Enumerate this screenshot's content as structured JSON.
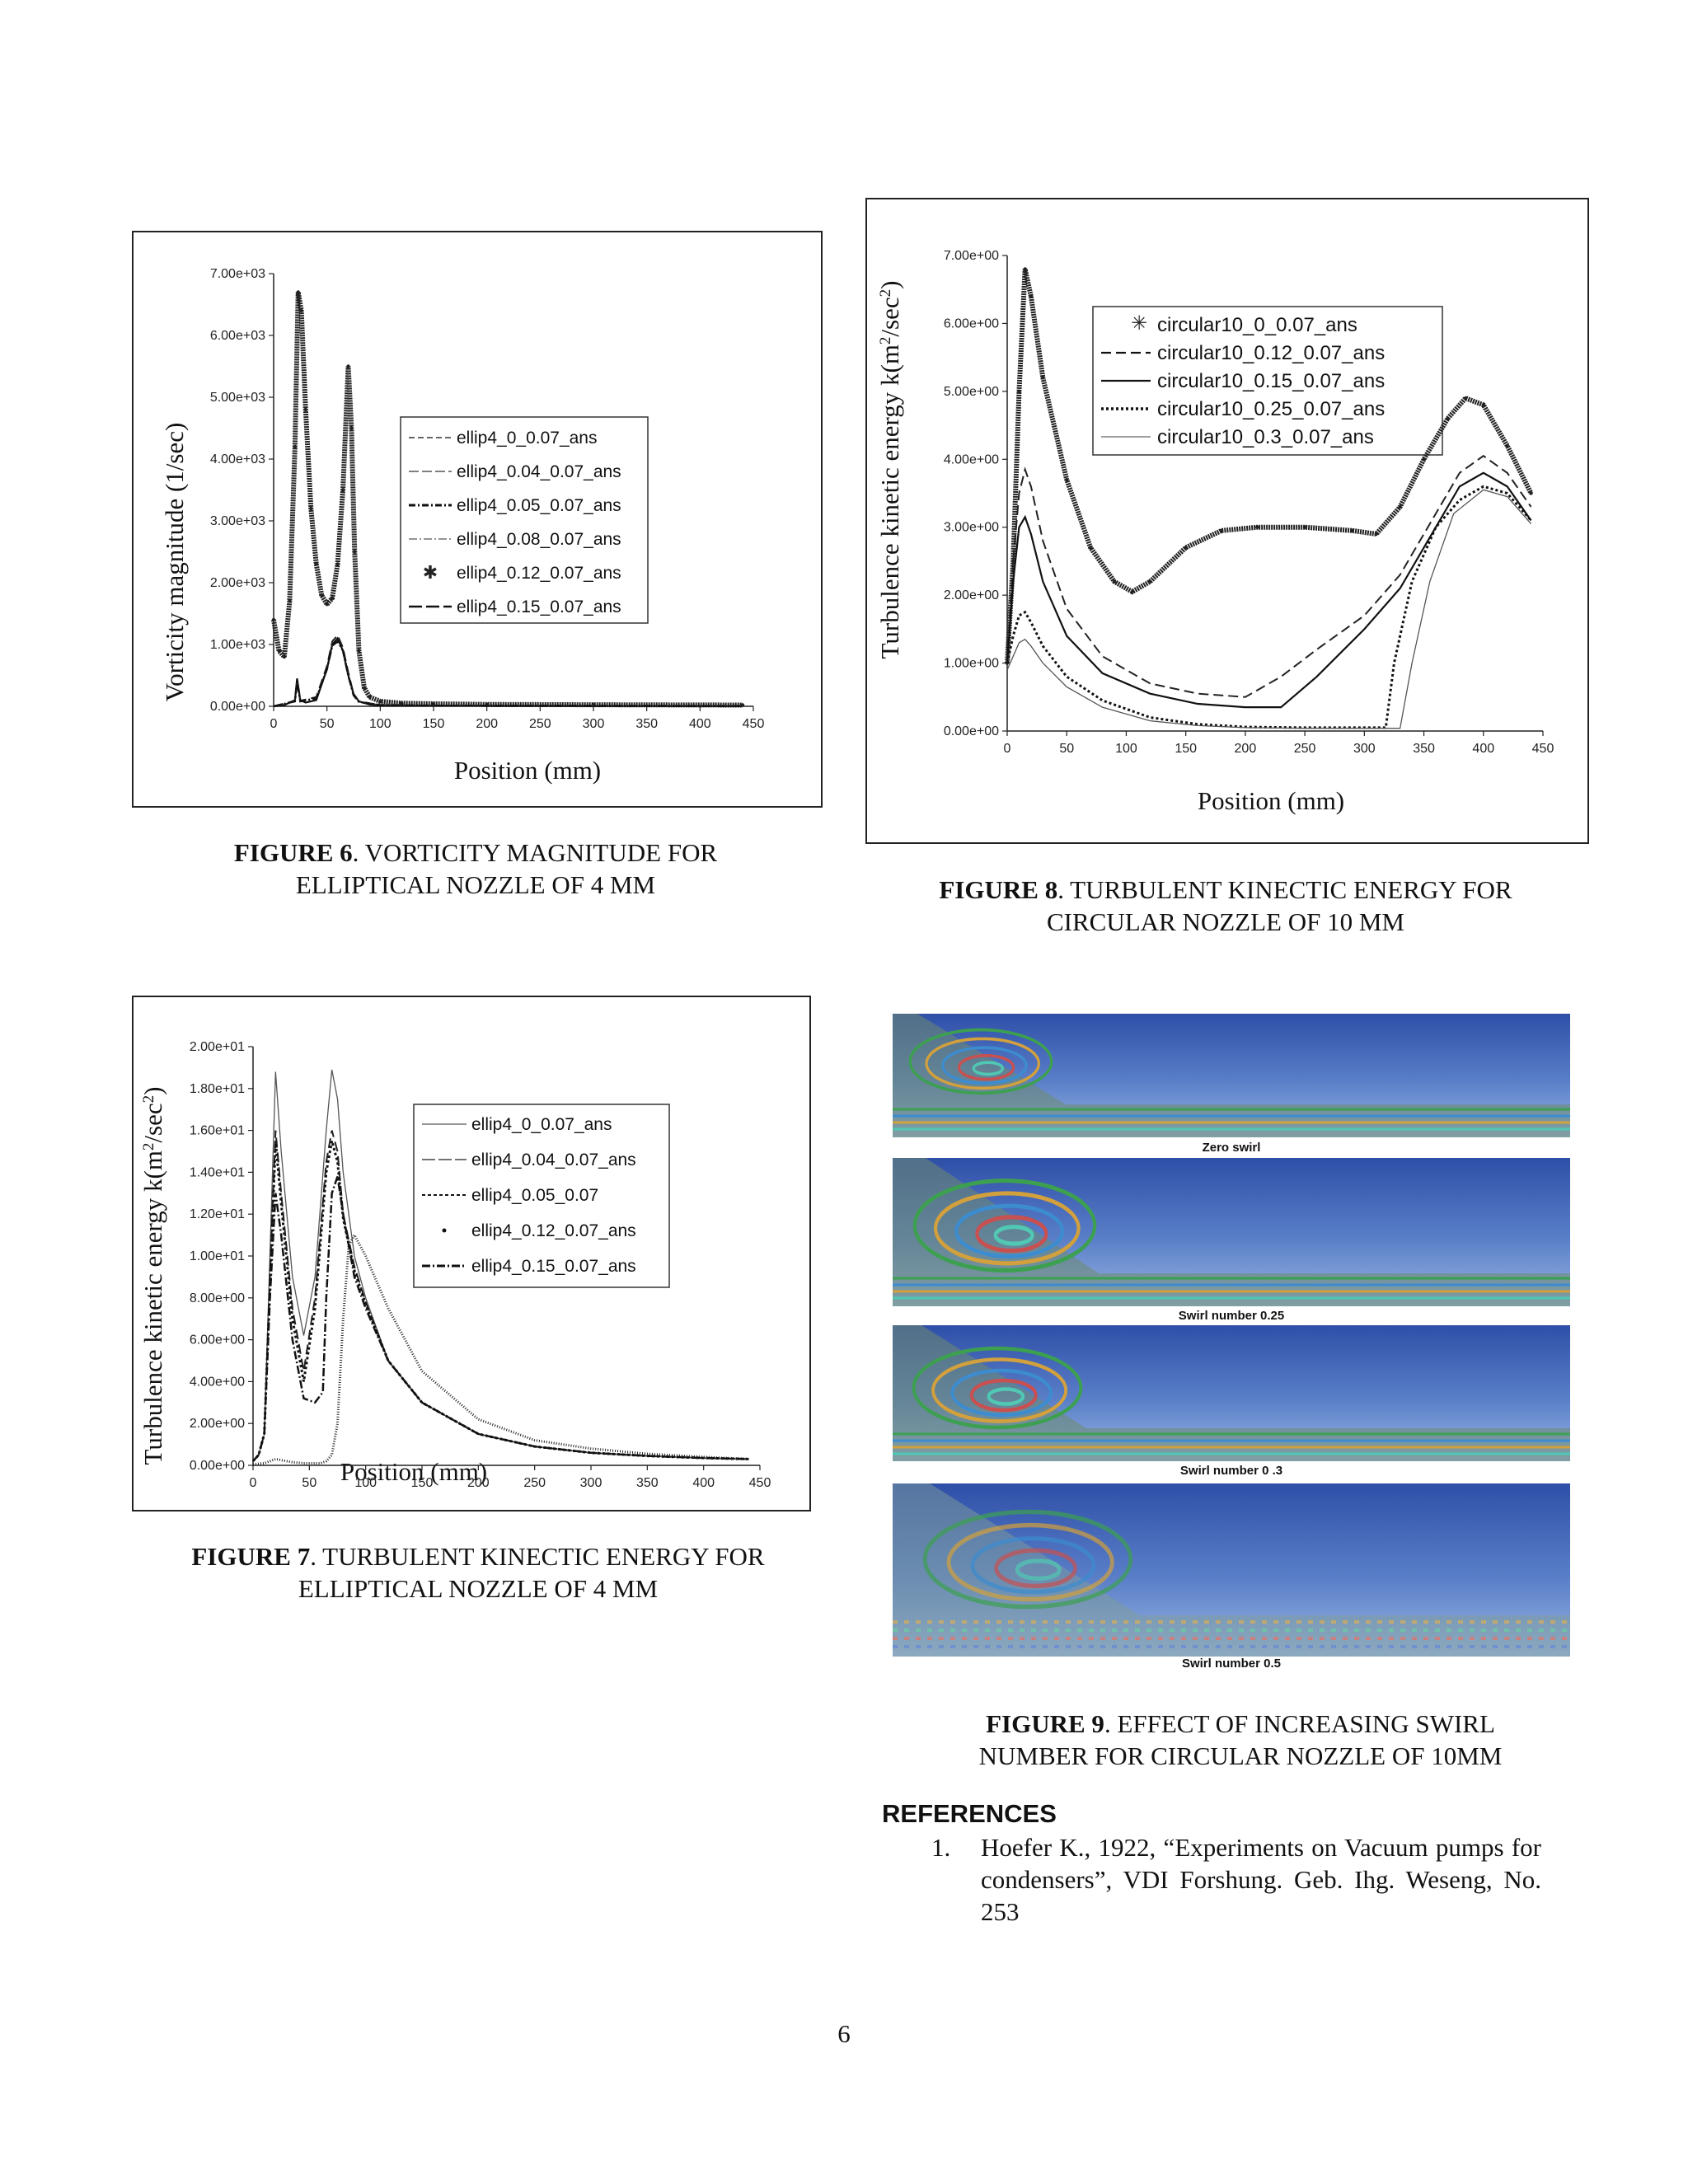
{
  "figure6": {
    "caption_label": "FIGURE 6",
    "caption_line1": ". VORTICITY MAGNITUDE FOR",
    "caption_line2": "ELLIPTICAL NOZZLE OF 4 MM",
    "ylabel": "Vorticity magnitude (1/sec)",
    "xlabel": "Position (mm)",
    "legend": [
      "ellip4_0_0.07_ans",
      "ellip4_0.04_0.07_ans",
      "ellip4_0.05_0.07_ans",
      "ellip4_0.08_0.07_ans",
      "ellip4_0.12_0.07_ans",
      "ellip4_0.15_0.07_ans"
    ],
    "y_ticks": [
      "0.00e+00",
      "1.00e+03",
      "2.00e+03",
      "3.00e+03",
      "4.00e+03",
      "5.00e+03",
      "6.00e+03",
      "7.00e+03"
    ],
    "x_ticks": [
      "0",
      "50",
      "100",
      "150",
      "200",
      "250",
      "300",
      "350",
      "400",
      "450"
    ]
  },
  "figure8": {
    "caption_label": "FIGURE 8",
    "caption_line1": ". TURBULENT KINECTIC ENERGY FOR",
    "caption_line2": "CIRCULAR NOZZLE OF 10 MM",
    "ylabel": "Turbulence kinetic energy k(m",
    "ylabel_sup": "2",
    "ylabel_mid": "/sec",
    "ylabel_sup2": "2",
    "ylabel_end": ")",
    "xlabel": "Position (mm)",
    "legend": [
      "circular10_0_0.07_ans",
      "circular10_0.12_0.07_ans",
      "circular10_0.15_0.07_ans",
      "circular10_0.25_0.07_ans",
      "circular10_0.3_0.07_ans"
    ],
    "y_ticks": [
      "0.00e+00",
      "1.00e+00",
      "2.00e+00",
      "3.00e+00",
      "4.00e+00",
      "5.00e+00",
      "6.00e+00",
      "7.00e+00"
    ],
    "x_ticks": [
      "0",
      "50",
      "100",
      "150",
      "200",
      "250",
      "300",
      "350",
      "400",
      "450"
    ]
  },
  "figure7": {
    "caption_label": "FIGURE 7",
    "caption_line1": ". TURBULENT KINECTIC ENERGY FOR",
    "caption_line2": "ELLIPTICAL NOZZLE OF 4 MM",
    "ylabel": "Turbulence kinetic energy k(m",
    "ylabel_sup": "2",
    "ylabel_mid": "/sec",
    "ylabel_sup2": "2",
    "ylabel_end": ")",
    "xlabel": "Position (mm)",
    "legend": [
      "ellip4_0_0.07_ans",
      "ellip4_0.04_0.07_ans",
      "ellip4_0.05_0.07",
      "ellip4_0.12_0.07_ans",
      "ellip4_0.15_0.07_ans"
    ],
    "y_ticks": [
      "0.00e+00",
      "2.00e+00",
      "4.00e+00",
      "6.00e+00",
      "8.00e+00",
      "1.00e+01",
      "1.20e+01",
      "1.40e+01",
      "1.60e+01",
      "1.80e+01",
      "2.00e+01"
    ],
    "x_ticks": [
      "0",
      "50",
      "100",
      "150",
      "200",
      "250",
      "300",
      "350",
      "400",
      "450"
    ]
  },
  "figure9": {
    "caption_label": "FIGURE 9",
    "caption_line1": ". EFFECT OF INCREASING SWIRL",
    "caption_line2": "NUMBER FOR CIRCULAR NOZZLE OF 10MM",
    "panels": [
      "Zero swirl",
      "Swirl number 0.25",
      "Swirl number 0 .3",
      "Swirl number 0.5"
    ]
  },
  "references": {
    "heading": "REFERENCES",
    "items": [
      {
        "number": "1.",
        "text": "Hoefer K., 1922, “Experiments on Vacuum pumps for condensers”, VDI Forshung. Geb. Ihg. Weseng, No. 253"
      }
    ]
  },
  "page_number": "6",
  "chart_data": [
    {
      "type": "line",
      "title": "Vorticity magnitude for elliptical nozzle of 4 mm",
      "xlabel": "Position (mm)",
      "ylabel": "Vorticity magnitude (1/sec)",
      "xlim": [
        0,
        450
      ],
      "ylim": [
        0,
        7000
      ],
      "series": [
        {
          "name": "ellip4_0.12_0.07_ans",
          "style": "star",
          "x": [
            0,
            5,
            10,
            15,
            20,
            23,
            26,
            30,
            35,
            40,
            45,
            50,
            55,
            60,
            65,
            70,
            73,
            76,
            80,
            85,
            90,
            100,
            120,
            150,
            200,
            300,
            440
          ],
          "y": [
            1400,
            900,
            800,
            1700,
            4200,
            6700,
            6400,
            4800,
            3200,
            2300,
            1800,
            1650,
            1750,
            2300,
            3500,
            5500,
            4500,
            2500,
            900,
            300,
            150,
            80,
            50,
            40,
            30,
            25,
            20
          ]
        },
        {
          "name": "ellip4_0.15_0.07_ans",
          "style": "solid",
          "x": [
            0,
            10,
            20,
            22,
            25,
            30,
            40,
            50,
            55,
            60,
            65,
            70,
            75,
            80,
            90,
            100,
            150,
            300,
            440
          ],
          "y": [
            0,
            20,
            100,
            450,
            100,
            60,
            100,
            600,
            1000,
            1100,
            900,
            500,
            200,
            80,
            30,
            15,
            10,
            5,
            5
          ]
        },
        {
          "name": "ellip4_0_0.07_ans",
          "style": "dashed",
          "x": [
            0,
            20,
            22,
            25,
            40,
            50,
            55,
            60,
            65,
            70,
            75,
            80,
            100,
            150,
            440
          ],
          "y": [
            0,
            90,
            420,
            90,
            150,
            650,
            1050,
            1150,
            950,
            550,
            200,
            80,
            20,
            10,
            5
          ]
        },
        {
          "name": "ellip4_0.05_0.07_ans",
          "style": "dashdot",
          "x": [
            0,
            20,
            22,
            25,
            40,
            50,
            55,
            60,
            65,
            70,
            75,
            80,
            100,
            150,
            440
          ],
          "y": [
            0,
            80,
            400,
            80,
            130,
            600,
            980,
            1050,
            900,
            500,
            180,
            70,
            20,
            10,
            5
          ]
        }
      ]
    },
    {
      "type": "line",
      "title": "Turbulent kinetic energy for circular nozzle of 10 mm",
      "xlabel": "Position (mm)",
      "ylabel": "Turbulence kinetic energy k(m2/sec2)",
      "xlim": [
        0,
        450
      ],
      "ylim": [
        0,
        7
      ],
      "series": [
        {
          "name": "circular10_0_0.07_ans",
          "style": "star",
          "x": [
            0,
            5,
            10,
            15,
            20,
            30,
            50,
            70,
            90,
            105,
            120,
            150,
            180,
            210,
            250,
            290,
            310,
            330,
            350,
            370,
            385,
            400,
            420,
            440
          ],
          "y": [
            1.0,
            2.5,
            5.0,
            6.8,
            6.4,
            5.2,
            3.7,
            2.7,
            2.2,
            2.05,
            2.2,
            2.7,
            2.95,
            3.0,
            3.0,
            2.95,
            2.9,
            3.3,
            4.0,
            4.6,
            4.9,
            4.8,
            4.2,
            3.5
          ]
        },
        {
          "name": "circular10_0.12_0.07_ans",
          "style": "dashed",
          "x": [
            0,
            5,
            10,
            15,
            20,
            30,
            50,
            80,
            120,
            160,
            200,
            230,
            260,
            300,
            330,
            360,
            380,
            400,
            420,
            440
          ],
          "y": [
            1.0,
            2.5,
            3.5,
            3.85,
            3.6,
            2.8,
            1.8,
            1.1,
            0.7,
            0.55,
            0.5,
            0.8,
            1.2,
            1.7,
            2.3,
            3.2,
            3.8,
            4.05,
            3.8,
            3.3
          ]
        },
        {
          "name": "circular10_0.15_0.07_ans",
          "style": "solid",
          "x": [
            0,
            5,
            10,
            15,
            20,
            30,
            50,
            80,
            120,
            160,
            200,
            230,
            260,
            300,
            330,
            360,
            380,
            400,
            420,
            440
          ],
          "y": [
            1.0,
            2.2,
            3.0,
            3.15,
            2.9,
            2.2,
            1.4,
            0.85,
            0.55,
            0.4,
            0.35,
            0.35,
            0.8,
            1.5,
            2.1,
            3.0,
            3.6,
            3.8,
            3.6,
            3.1
          ]
        },
        {
          "name": "circular10_0.25_0.07_ans",
          "style": "dotted",
          "x": [
            0,
            5,
            10,
            15,
            20,
            30,
            50,
            80,
            120,
            160,
            200,
            250,
            300,
            318,
            325,
            340,
            360,
            380,
            400,
            420,
            440
          ],
          "y": [
            1.0,
            1.4,
            1.7,
            1.75,
            1.6,
            1.25,
            0.8,
            0.45,
            0.2,
            0.1,
            0.06,
            0.05,
            0.05,
            0.05,
            1.0,
            2.2,
            3.0,
            3.4,
            3.6,
            3.5,
            3.1
          ]
        },
        {
          "name": "circular10_0.3_0.07_ans",
          "style": "thin",
          "x": [
            0,
            5,
            10,
            15,
            20,
            30,
            50,
            80,
            120,
            160,
            200,
            250,
            300,
            330,
            340,
            355,
            375,
            400,
            420,
            440
          ],
          "y": [
            0.9,
            1.1,
            1.3,
            1.35,
            1.25,
            1.0,
            0.65,
            0.35,
            0.15,
            0.08,
            0.05,
            0.04,
            0.04,
            0.04,
            1.0,
            2.2,
            3.2,
            3.55,
            3.45,
            3.05
          ]
        }
      ]
    },
    {
      "type": "line",
      "title": "Turbulent kinetic energy for elliptical nozzle of 4 mm",
      "xlabel": "Position (mm)",
      "ylabel": "Turbulence kinetic energy k(m2/sec2)",
      "xlim": [
        0,
        450
      ],
      "ylim": [
        0,
        20
      ],
      "series": [
        {
          "name": "ellip4_0_0.07_ans",
          "style": "thin",
          "x": [
            0,
            5,
            10,
            15,
            20,
            25,
            35,
            45,
            55,
            65,
            70,
            75,
            80,
            90,
            100,
            120,
            150,
            200,
            250,
            300,
            350,
            400,
            440
          ],
          "y": [
            0.2,
            0.5,
            1.5,
            10,
            18.8,
            15,
            9,
            6.2,
            9,
            16,
            18.9,
            17.5,
            14,
            10,
            8,
            5,
            3,
            1.5,
            0.9,
            0.6,
            0.45,
            0.35,
            0.3
          ]
        },
        {
          "name": "ellip4_0.04_0.07_ans",
          "style": "dashed",
          "x": [
            0,
            5,
            10,
            15,
            20,
            25,
            35,
            45,
            55,
            65,
            70,
            75,
            80,
            90,
            100,
            120,
            150,
            200,
            250,
            300,
            350,
            400,
            440
          ],
          "y": [
            0.2,
            0.5,
            1.5,
            9,
            16,
            13,
            7.5,
            4.5,
            8,
            14.5,
            16,
            15,
            12,
            9.5,
            7.8,
            5,
            3,
            1.5,
            0.9,
            0.6,
            0.45,
            0.35,
            0.3
          ]
        },
        {
          "name": "ellip4_0.05_0.07",
          "style": "dotted",
          "x": [
            0,
            5,
            10,
            15,
            20,
            25,
            35,
            45,
            55,
            65,
            70,
            75,
            80,
            90,
            100,
            120,
            150,
            200,
            250,
            300,
            350,
            400,
            440
          ],
          "y": [
            0.2,
            0.5,
            1.5,
            8.5,
            15.5,
            12.5,
            7,
            4,
            7.5,
            14,
            15.5,
            14.5,
            11.8,
            9.3,
            7.7,
            5,
            3,
            1.5,
            0.9,
            0.6,
            0.45,
            0.35,
            0.3
          ]
        },
        {
          "name": "ellip4_0.12_0.07_ans",
          "style": "markers",
          "x": [
            0,
            10,
            15,
            20,
            25,
            35,
            45,
            50,
            55,
            60,
            65,
            70,
            75,
            80,
            85,
            90,
            100,
            120,
            150,
            200,
            250,
            300,
            350,
            400,
            440
          ],
          "y": [
            0.05,
            0.1,
            0.2,
            0.3,
            0.25,
            0.15,
            0.1,
            0.1,
            0.1,
            0.1,
            0.2,
            0.5,
            2,
            7,
            10.5,
            11,
            10,
            7.5,
            4.5,
            2.2,
            1.2,
            0.8,
            0.55,
            0.4,
            0.3
          ]
        },
        {
          "name": "ellip4_0.15_0.07_ans",
          "style": "dashdot",
          "x": [
            0,
            5,
            10,
            15,
            20,
            25,
            35,
            45,
            55,
            62,
            65,
            70,
            75,
            80,
            90,
            100,
            120,
            150,
            200,
            250,
            300,
            350,
            400,
            440
          ],
          "y": [
            0.2,
            0.5,
            1.5,
            8,
            13,
            11,
            6,
            3.2,
            3.0,
            3.5,
            8,
            13,
            13.8,
            12,
            9,
            7.5,
            5,
            3,
            1.5,
            0.9,
            0.6,
            0.45,
            0.35,
            0.3
          ]
        }
      ]
    }
  ]
}
